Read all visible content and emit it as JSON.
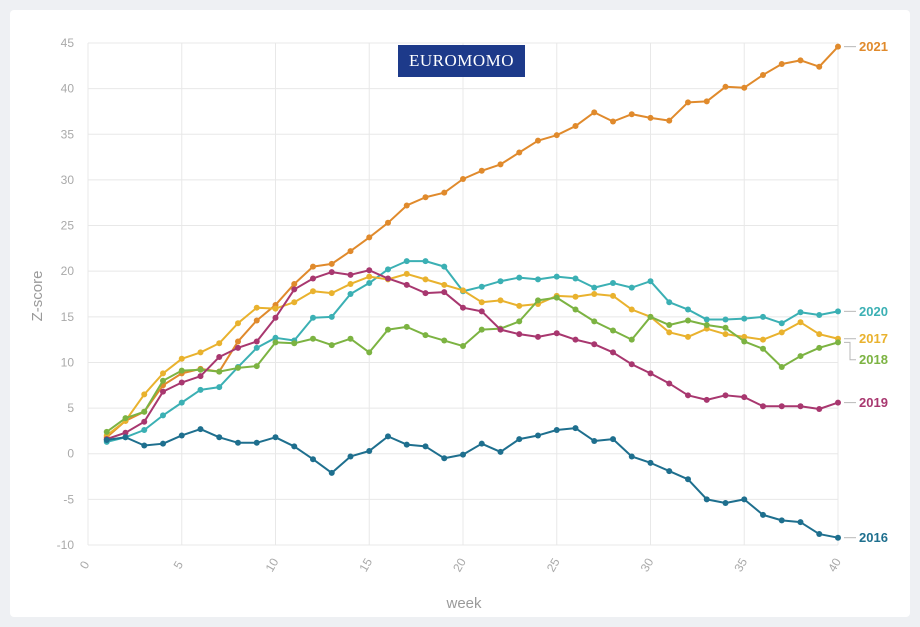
{
  "logo": {
    "text": "EUROMOMO"
  },
  "chart_data": {
    "type": "line",
    "title": "",
    "xlabel": "week",
    "ylabel": "Z-score",
    "xlim": [
      0,
      40
    ],
    "ylim": [
      -10,
      45
    ],
    "x_ticks": [
      0,
      5,
      10,
      15,
      20,
      25,
      30,
      35,
      40
    ],
    "y_ticks": [
      -10,
      -5,
      0,
      5,
      10,
      15,
      20,
      25,
      30,
      35,
      40,
      45
    ],
    "grid": true,
    "x": [
      1,
      2,
      3,
      4,
      5,
      6,
      7,
      8,
      9,
      10,
      11,
      12,
      13,
      14,
      15,
      16,
      17,
      18,
      19,
      20,
      21,
      22,
      23,
      24,
      25,
      26,
      27,
      28,
      29,
      30,
      31,
      32,
      33,
      34,
      35,
      36,
      37,
      38,
      39,
      40
    ],
    "series": [
      {
        "name": "2021",
        "color": "#e08a2c",
        "values": [
          1.8,
          3.6,
          4.6,
          7.5,
          8.8,
          9.3,
          9.0,
          12.3,
          14.6,
          16.3,
          18.6,
          20.5,
          20.8,
          22.2,
          23.7,
          25.3,
          27.2,
          28.1,
          28.6,
          30.1,
          31.0,
          31.7,
          33.0,
          34.3,
          34.9,
          35.9,
          37.4,
          36.4,
          37.2,
          36.8,
          36.5,
          38.5,
          38.6,
          40.2,
          40.1,
          41.5,
          42.7,
          43.1,
          42.4,
          44.6
        ]
      },
      {
        "name": "2020",
        "color": "#3bb0b4",
        "values": [
          1.3,
          1.8,
          2.6,
          4.2,
          5.6,
          7.0,
          7.3,
          9.5,
          11.6,
          12.7,
          12.4,
          14.9,
          15.0,
          17.5,
          18.7,
          20.2,
          21.1,
          21.1,
          20.5,
          17.8,
          18.3,
          18.9,
          19.3,
          19.1,
          19.4,
          19.2,
          18.2,
          18.7,
          18.2,
          18.9,
          16.6,
          15.8,
          14.7,
          14.7,
          14.8,
          15.0,
          14.3,
          15.5,
          15.2,
          15.6
        ]
      },
      {
        "name": "2017",
        "color": "#e9b22e",
        "values": [
          2.0,
          3.6,
          6.5,
          8.8,
          10.4,
          11.1,
          12.1,
          14.3,
          16.0,
          15.9,
          16.6,
          17.8,
          17.6,
          18.6,
          19.4,
          19.1,
          19.7,
          19.1,
          18.5,
          17.9,
          16.6,
          16.8,
          16.2,
          16.4,
          17.3,
          17.2,
          17.5,
          17.3,
          15.8,
          15.0,
          13.3,
          12.8,
          13.7,
          13.1,
          12.8,
          12.5,
          13.3,
          14.4,
          13.1,
          12.6
        ]
      },
      {
        "name": "2018",
        "color": "#7cb342",
        "values": [
          2.4,
          3.9,
          4.6,
          8.0,
          9.1,
          9.2,
          9.0,
          9.4,
          9.6,
          12.2,
          12.1,
          12.6,
          11.9,
          12.6,
          11.1,
          13.6,
          13.9,
          13.0,
          12.4,
          11.8,
          13.6,
          13.7,
          14.5,
          16.8,
          17.1,
          15.8,
          14.5,
          13.5,
          12.5,
          15.0,
          14.1,
          14.6,
          14.1,
          13.8,
          12.3,
          11.5,
          9.5,
          10.7,
          11.6,
          12.2
        ]
      },
      {
        "name": "2019",
        "color": "#a8376f",
        "values": [
          1.6,
          2.3,
          3.5,
          6.8,
          7.8,
          8.5,
          10.6,
          11.6,
          12.3,
          14.9,
          18.0,
          19.2,
          19.9,
          19.6,
          20.1,
          19.2,
          18.5,
          17.6,
          17.7,
          16.0,
          15.6,
          13.6,
          13.1,
          12.8,
          13.2,
          12.5,
          12.0,
          11.1,
          9.8,
          8.8,
          7.7,
          6.4,
          5.9,
          6.4,
          6.2,
          5.2,
          5.2,
          5.2,
          4.9,
          5.6
        ]
      },
      {
        "name": "2016",
        "color": "#1e6f8e",
        "values": [
          1.5,
          1.8,
          0.9,
          1.1,
          2.0,
          2.7,
          1.8,
          1.2,
          1.2,
          1.8,
          0.8,
          -0.6,
          -2.1,
          -0.3,
          0.3,
          1.9,
          1.0,
          0.8,
          -0.5,
          -0.1,
          1.1,
          0.2,
          1.6,
          2.0,
          2.6,
          2.8,
          1.4,
          1.6,
          -0.3,
          -1.0,
          -1.9,
          -2.8,
          -5.0,
          -5.4,
          -5.0,
          -6.7,
          -7.3,
          -7.5,
          -8.8,
          -9.2
        ]
      }
    ]
  }
}
